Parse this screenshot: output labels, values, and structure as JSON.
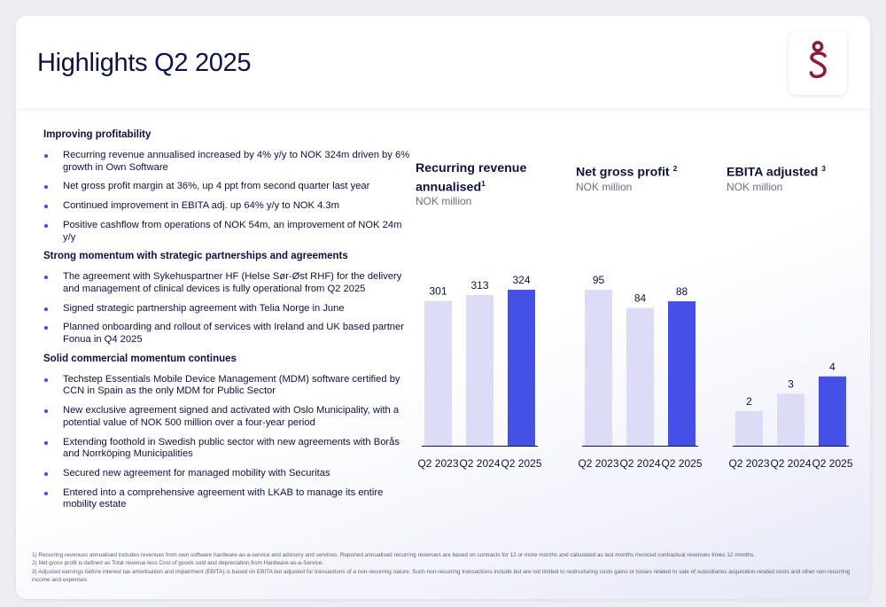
{
  "page": {
    "title": "Highlights Q2 2025"
  },
  "logo": {
    "icon": "techstep-logo-icon",
    "color": "#8b1c3d"
  },
  "highlights": [
    {
      "heading": "Improving profitability",
      "items": [
        "Recurring revenue annualised increased by 4% y/y to NOK 324m driven by 6% growth in Own Software",
        "Net gross profit margin at 36%, up 4 ppt from second quarter last year",
        "Continued improvement in EBITA adj.  up 64% y/y to NOK 4.3m",
        "Positive cashflow from operations of NOK 54m, an improvement of NOK 24m y/y"
      ]
    },
    {
      "heading": "Strong momentum with strategic partnerships and agreements",
      "items": [
        "The agreement with Sykehuspartner HF (Helse Sør-Øst RHF) for the delivery and management of clinical devices is fully operational from Q2 2025",
        "Signed strategic partnership agreement with Telia Norge in June",
        "Planned onboarding and rollout of services with Ireland and UK based partner Fonua in Q4 2025"
      ]
    },
    {
      "heading": "Solid commercial momentum continues",
      "items": [
        "Techstep Essentials Mobile Device Management (MDM) software certified by CCN in Spain as the only MDM for Public Sector",
        "New exclusive agreement signed and activated with Oslo Municipality, with a potential value of NOK 500 million over a four-year period",
        "Extending foothold in Swedish public sector with new agreements with Borås and Norrköping Municipalities",
        "Secured new agreement for managed mobility with Securitas",
        "Entered into a comprehensive agreement with LKAB to manage its entire mobility estate"
      ]
    }
  ],
  "colors": {
    "bar_prior": "#dcdcf6",
    "bar_current": "#4450e6",
    "bullet": "#3d4de0",
    "text": "#0d1240",
    "axis": "#0d1240"
  },
  "chart_data": [
    {
      "type": "bar",
      "title": "Recurring revenue annualised",
      "title_sup": "1",
      "unit": "NOK million",
      "categories": [
        "Q2 2023",
        "Q2 2024",
        "Q2 2025"
      ],
      "values": [
        301,
        313,
        324
      ],
      "data_labels": [
        "301",
        "313",
        "324"
      ],
      "ylim": [
        0,
        324
      ],
      "grid": false,
      "legend": "none"
    },
    {
      "type": "bar",
      "title": "Net gross profit",
      "title_sup": "2",
      "unit": "NOK million",
      "categories": [
        "Q2 2023",
        "Q2 2024",
        "Q2 2025"
      ],
      "values": [
        95,
        84,
        88
      ],
      "data_labels": [
        "95",
        "84",
        "88"
      ],
      "ylim": [
        0,
        95
      ],
      "grid": false,
      "legend": "none"
    },
    {
      "type": "bar",
      "title": "EBITA adjusted",
      "title_sup": "3",
      "unit": "NOK million",
      "categories": [
        "Q2 2023",
        "Q2 2024",
        "Q2 2025"
      ],
      "values": [
        2,
        3,
        4
      ],
      "data_labels": [
        "2",
        "3",
        "4"
      ],
      "ylim": [
        0,
        9
      ],
      "grid": false,
      "legend": "none"
    }
  ],
  "footnotes": [
    "1) Recurring revenues annualised includes revenues from own software  hardware-as-a-service and advisory and services. Reported annualised recurring revenues are based on contracts for 12 or more months and calculated as last months invoiced contractual revenues times 12 months.",
    "2) Net gross profit is defined as Total revenue less Cost of goods sold and depreciation from Hardware-as-a-Service.",
    "3) Adjusted earnings before interest  tax  amortisation and impairment (EBITA) is based on EBITA but adjusted for transactions of a non-recurring nature. Such non-recurring transactions include  but are not limited to restructuring costs  gains or losses related to sale of subsidiaries  acquisition-related costs and other non-recurring income and expenses"
  ]
}
